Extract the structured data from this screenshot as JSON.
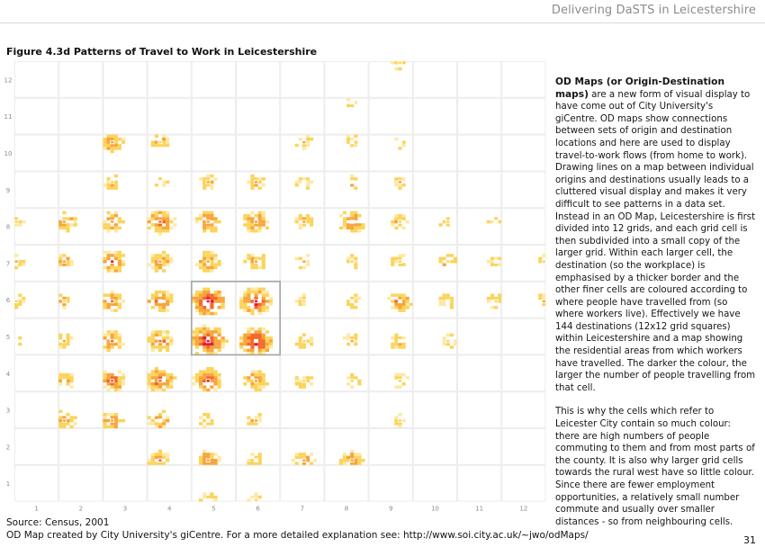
{
  "header": {
    "title": "Delivering DaSTS in Leicestershire"
  },
  "figure": {
    "title": "Figure 4.3d  Patterns of Travel to Work in Leicestershire",
    "source_line": "Source: Census, 2001",
    "credit_line": "OD Map created by City University's giCentre. For a more detailed explanation see: http://www.soi.city.ac.uk/~jwo/odMaps/"
  },
  "sidebar": {
    "heading": "OD Maps (or Origin-Destination maps)",
    "para1": "are a new form of visual display to have come out of City University's giCentre. OD maps show connections between sets of origin and destination locations and here are used to display travel-to-work flows (from home to work). Drawing lines on a map between individual origins and destinations usually leads to a cluttered visual display and makes it very difficult to see patterns in a data set. Instead in an OD Map, Leicestershire is first divided into 12 grids, and each grid cell is then subdivided into a small copy of the larger grid. Within each larger cell, the destination (so the workplace) is emphasised by a thicker border and the other finer cells are coloured according to where people have travelled from (so where workers live). Effectively we have 144 destinations (12x12 grid squares) within Leicestershire and a map showing the residential areas from which workers have travelled. The darker the colour, the larger the number of people travelling from that cell.",
    "para2": "This is why the cells which refer to Leicester City contain so much colour: there are high numbers of people commuting to them and from most parts of the county. It is also why larger grid cells towards the rural west have so little colour. Since there are fewer employment opportunities, a relatively small number commute and usually over smaller distances - so from neighbouring cells."
  },
  "chart_data": {
    "type": "heatmap",
    "grid": "12x12 destination cells",
    "x_ticks": [
      "1",
      "2",
      "3",
      "4",
      "5",
      "6",
      "7",
      "8",
      "9",
      "10",
      "11",
      "12"
    ],
    "y_ticks": [
      "1",
      "2",
      "3",
      "4",
      "5",
      "6",
      "7",
      "8",
      "9",
      "10",
      "11",
      "12"
    ],
    "highlighted_cells": [
      [
        5,
        5
      ],
      [
        5,
        6
      ],
      [
        6,
        5
      ],
      [
        6,
        6
      ]
    ],
    "intensity": {
      "12": [
        0,
        0,
        0,
        0,
        0,
        0,
        0,
        0,
        0.25,
        0,
        0,
        0
      ],
      "11": [
        0,
        0,
        0,
        0,
        0,
        0,
        0,
        0.15,
        0,
        0,
        0,
        0
      ],
      "10": [
        0,
        0,
        0.55,
        0.35,
        0,
        0,
        0.25,
        0.3,
        0.2,
        0,
        0,
        0
      ],
      "9": [
        0,
        0,
        0.3,
        0.25,
        0.35,
        0.3,
        0.3,
        0.3,
        0.2,
        0,
        0,
        0
      ],
      "8": [
        0.25,
        0.5,
        0.5,
        0.7,
        0.6,
        0.6,
        0.35,
        0.6,
        0.35,
        0.25,
        0.2,
        0
      ],
      "7": [
        0.3,
        0.4,
        0.65,
        0.5,
        0.5,
        0.45,
        0.25,
        0.25,
        0.25,
        0.35,
        0.2,
        0.2
      ],
      "6": [
        0.3,
        0.4,
        0.55,
        0.6,
        0.9,
        0.85,
        0.2,
        0.3,
        0.55,
        0.35,
        0.3,
        0.25
      ],
      "5": [
        0.15,
        0.4,
        0.55,
        0.6,
        0.95,
        0.9,
        0.3,
        0.3,
        0.4,
        0.35,
        0,
        0
      ],
      "4": [
        0,
        0.4,
        0.65,
        0.7,
        0.75,
        0.55,
        0.3,
        0.25,
        0.25,
        0,
        0,
        0
      ],
      "3": [
        0,
        0.5,
        0.5,
        0.5,
        0.35,
        0.3,
        0,
        0,
        0.2,
        0,
        0,
        0
      ],
      "2": [
        0,
        0,
        0,
        0.5,
        0.55,
        0.35,
        0.45,
        0.55,
        0,
        0,
        0,
        0
      ],
      "1": [
        0,
        0,
        0,
        0,
        0.25,
        0.2,
        0,
        0,
        0,
        0,
        0,
        0
      ]
    }
  },
  "page": {
    "number": "31"
  },
  "colors": {
    "high": "#e8173a",
    "mid": "#f26a2a",
    "low": "#fbd45c",
    "grid": "#ececec",
    "highlight": "#a6a6a6"
  }
}
